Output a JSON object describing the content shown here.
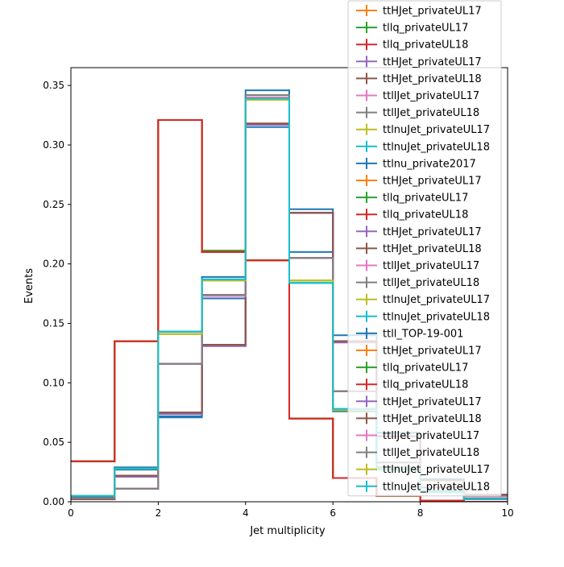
{
  "chart_data": {
    "type": "line",
    "title": "",
    "xlabel": "Jet multiplicity",
    "ylabel": "Events",
    "xlim": [
      0,
      10
    ],
    "ylim": [
      0,
      0.365
    ],
    "grid": false,
    "legend_position": "upper-right",
    "x_ticks": [
      "0",
      "2",
      "4",
      "6",
      "8",
      "10"
    ],
    "y_ticks": [
      "0.00",
      "0.05",
      "0.10",
      "0.15",
      "0.20",
      "0.25",
      "0.30",
      "0.35"
    ],
    "bin_edges": [
      0,
      1,
      2,
      3,
      4,
      5,
      6,
      7,
      8,
      9,
      10
    ],
    "series": [
      {
        "name": "ttHJet_privateUL17",
        "color": "#ff7f0e",
        "values": [
          0.034,
          0.135,
          0.321,
          0.211,
          0.203,
          0.07,
          0.02,
          0.005,
          0.001,
          0.0
        ]
      },
      {
        "name": "tllq_privateUL17",
        "color": "#2ca02c",
        "values": [
          0.034,
          0.135,
          0.321,
          0.211,
          0.203,
          0.07,
          0.02,
          0.005,
          0.001,
          0.0
        ]
      },
      {
        "name": "tllq_privateUL18",
        "color": "#d62728",
        "values": [
          0.034,
          0.135,
          0.321,
          0.21,
          0.203,
          0.07,
          0.02,
          0.005,
          0.001,
          0.0
        ]
      },
      {
        "name": "ttHJet_privateUL17",
        "color": "#9467bd",
        "values": [
          0.002,
          0.021,
          0.074,
          0.131,
          0.317,
          0.243,
          0.134,
          0.055,
          0.018,
          0.005
        ]
      },
      {
        "name": "ttHJet_privateUL18",
        "color": "#8c564b",
        "values": [
          0.002,
          0.022,
          0.075,
          0.132,
          0.318,
          0.243,
          0.135,
          0.055,
          0.018,
          0.006
        ]
      },
      {
        "name": "ttllJet_privateUL17",
        "color": "#e377c2",
        "values": [
          0.003,
          0.011,
          0.116,
          0.173,
          0.34,
          0.205,
          0.093,
          0.033,
          0.012,
          0.003
        ]
      },
      {
        "name": "ttllJet_privateUL18",
        "color": "#7f7f7f",
        "values": [
          0.003,
          0.011,
          0.116,
          0.174,
          0.342,
          0.205,
          0.093,
          0.033,
          0.012,
          0.003
        ]
      },
      {
        "name": "ttlnuJet_privateUL17",
        "color": "#bcbd22",
        "values": [
          0.005,
          0.028,
          0.141,
          0.186,
          0.338,
          0.186,
          0.077,
          0.028,
          0.008,
          0.002
        ]
      },
      {
        "name": "ttlnuJet_privateUL18",
        "color": "#17becf",
        "values": [
          0.005,
          0.028,
          0.143,
          0.187,
          0.339,
          0.184,
          0.078,
          0.027,
          0.008,
          0.002
        ]
      },
      {
        "name": "ttlnu_private2017",
        "color": "#1f77b4",
        "values": [
          0.004,
          0.027,
          0.072,
          0.171,
          0.315,
          0.21,
          0.076,
          0.029,
          0.009,
          0.002
        ]
      },
      {
        "name": "ttHJet_privateUL17",
        "color": "#ff7f0e",
        "values": [
          0.034,
          0.135,
          0.321,
          0.211,
          0.203,
          0.07,
          0.02,
          0.005,
          0.001,
          0.0
        ]
      },
      {
        "name": "tllq_privateUL17",
        "color": "#2ca02c",
        "values": [
          0.034,
          0.135,
          0.321,
          0.211,
          0.203,
          0.07,
          0.02,
          0.005,
          0.001,
          0.0
        ]
      },
      {
        "name": "tllq_privateUL18",
        "color": "#d62728",
        "values": [
          0.034,
          0.135,
          0.321,
          0.21,
          0.203,
          0.07,
          0.02,
          0.005,
          0.001,
          0.0
        ]
      },
      {
        "name": "ttHJet_privateUL17",
        "color": "#9467bd",
        "values": [
          0.002,
          0.021,
          0.074,
          0.131,
          0.317,
          0.243,
          0.134,
          0.055,
          0.018,
          0.005
        ]
      },
      {
        "name": "ttHJet_privateUL18",
        "color": "#8c564b",
        "values": [
          0.002,
          0.022,
          0.075,
          0.132,
          0.318,
          0.243,
          0.135,
          0.055,
          0.018,
          0.006
        ]
      },
      {
        "name": "ttllJet_privateUL17",
        "color": "#e377c2",
        "values": [
          0.003,
          0.011,
          0.116,
          0.173,
          0.34,
          0.205,
          0.093,
          0.033,
          0.012,
          0.003
        ]
      },
      {
        "name": "ttllJet_privateUL18",
        "color": "#7f7f7f",
        "values": [
          0.003,
          0.011,
          0.116,
          0.174,
          0.342,
          0.205,
          0.093,
          0.033,
          0.012,
          0.003
        ]
      },
      {
        "name": "ttlnuJet_privateUL17",
        "color": "#bcbd22",
        "values": [
          0.005,
          0.028,
          0.141,
          0.186,
          0.338,
          0.186,
          0.077,
          0.028,
          0.008,
          0.002
        ]
      },
      {
        "name": "ttlnuJet_privateUL18",
        "color": "#17becf",
        "values": [
          0.005,
          0.028,
          0.143,
          0.187,
          0.339,
          0.184,
          0.078,
          0.027,
          0.008,
          0.002
        ]
      },
      {
        "name": "ttll_TOP-19-001",
        "color": "#1f77b4",
        "values": [
          0.004,
          0.029,
          0.071,
          0.189,
          0.346,
          0.246,
          0.14,
          0.058,
          0.019,
          0.006
        ]
      },
      {
        "name": "ttHJet_privateUL17",
        "color": "#ff7f0e",
        "values": [
          0.034,
          0.135,
          0.321,
          0.211,
          0.203,
          0.07,
          0.02,
          0.005,
          0.001,
          0.0
        ]
      },
      {
        "name": "tllq_privateUL17",
        "color": "#2ca02c",
        "values": [
          0.034,
          0.135,
          0.321,
          0.211,
          0.203,
          0.07,
          0.02,
          0.005,
          0.001,
          0.0
        ]
      },
      {
        "name": "tllq_privateUL18",
        "color": "#d62728",
        "values": [
          0.034,
          0.135,
          0.321,
          0.21,
          0.203,
          0.07,
          0.02,
          0.005,
          0.001,
          0.0
        ]
      },
      {
        "name": "ttHJet_privateUL17",
        "color": "#9467bd",
        "values": [
          0.002,
          0.021,
          0.074,
          0.131,
          0.317,
          0.243,
          0.134,
          0.055,
          0.018,
          0.005
        ]
      },
      {
        "name": "ttHJet_privateUL18",
        "color": "#8c564b",
        "values": [
          0.002,
          0.022,
          0.075,
          0.132,
          0.318,
          0.243,
          0.135,
          0.055,
          0.018,
          0.006
        ]
      },
      {
        "name": "ttllJet_privateUL17",
        "color": "#e377c2",
        "values": [
          0.003,
          0.011,
          0.116,
          0.173,
          0.34,
          0.205,
          0.093,
          0.033,
          0.012,
          0.003
        ]
      },
      {
        "name": "ttllJet_privateUL18",
        "color": "#7f7f7f",
        "values": [
          0.003,
          0.011,
          0.116,
          0.174,
          0.342,
          0.205,
          0.093,
          0.033,
          0.012,
          0.003
        ]
      },
      {
        "name": "ttlnuJet_privateUL17",
        "color": "#bcbd22",
        "values": [
          0.005,
          0.028,
          0.141,
          0.186,
          0.338,
          0.186,
          0.077,
          0.028,
          0.008,
          0.002
        ]
      },
      {
        "name": "ttlnuJet_privateUL18",
        "color": "#17becf",
        "values": [
          0.005,
          0.028,
          0.143,
          0.187,
          0.339,
          0.184,
          0.078,
          0.027,
          0.008,
          0.002
        ]
      }
    ]
  }
}
